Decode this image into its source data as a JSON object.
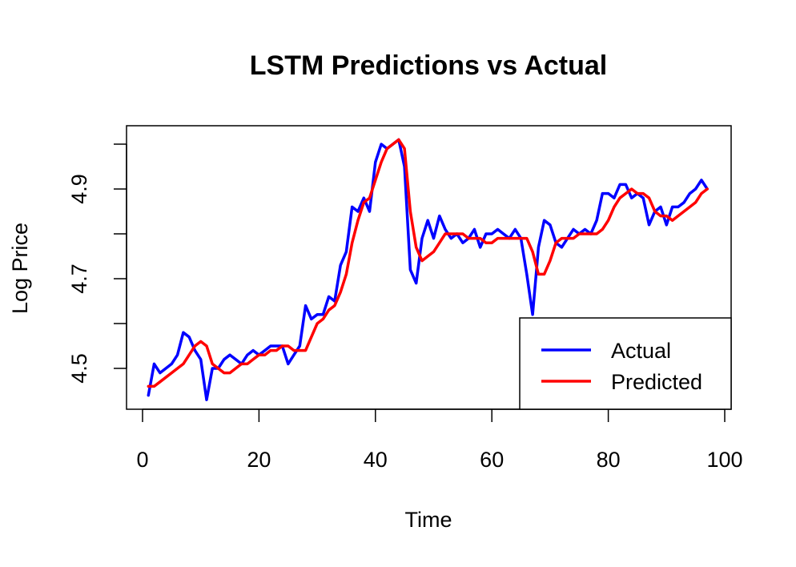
{
  "chart_data": {
    "type": "line",
    "title": "LSTM Predictions vs Actual",
    "xlabel": "Time",
    "ylabel": "Log Price",
    "xlim": [
      0,
      100
    ],
    "ylim": [
      4.42,
      5.02
    ],
    "x_ticks": [
      0,
      20,
      40,
      60,
      80,
      100
    ],
    "y_ticks": [
      4.5,
      4.6,
      4.7,
      4.8,
      4.9,
      5.0
    ],
    "y_tick_labels": [
      "4.5",
      "",
      "4.7",
      "",
      "4.9",
      ""
    ],
    "grid": false,
    "legend_position": "bottom-right",
    "series": [
      {
        "name": "Actual",
        "color": "#0000FF",
        "x": [
          1,
          2,
          3,
          4,
          5,
          6,
          7,
          8,
          9,
          10,
          11,
          12,
          13,
          14,
          15,
          16,
          17,
          18,
          19,
          20,
          21,
          22,
          23,
          24,
          25,
          26,
          27,
          28,
          29,
          30,
          31,
          32,
          33,
          34,
          35,
          36,
          37,
          38,
          39,
          40,
          41,
          42,
          43,
          44,
          45,
          46,
          47,
          48,
          49,
          50,
          51,
          52,
          53,
          54,
          55,
          56,
          57,
          58,
          59,
          60,
          61,
          62,
          63,
          64,
          65,
          66,
          67,
          68,
          69,
          70,
          71,
          72,
          73,
          74,
          75,
          76,
          77,
          78,
          79,
          80,
          81,
          82,
          83,
          84,
          85,
          86,
          87,
          88,
          89,
          90,
          91,
          92,
          93,
          94,
          95,
          96,
          97
        ],
        "values": [
          4.44,
          4.51,
          4.49,
          4.5,
          4.51,
          4.53,
          4.58,
          4.57,
          4.54,
          4.52,
          4.43,
          4.5,
          4.5,
          4.52,
          4.53,
          4.52,
          4.51,
          4.53,
          4.54,
          4.53,
          4.54,
          4.55,
          4.55,
          4.55,
          4.51,
          4.53,
          4.55,
          4.64,
          4.61,
          4.62,
          4.62,
          4.66,
          4.65,
          4.73,
          4.76,
          4.86,
          4.85,
          4.88,
          4.85,
          4.96,
          5.0,
          4.99,
          5.0,
          5.01,
          4.95,
          4.72,
          4.69,
          4.79,
          4.83,
          4.79,
          4.84,
          4.81,
          4.79,
          4.8,
          4.78,
          4.79,
          4.81,
          4.77,
          4.8,
          4.8,
          4.81,
          4.8,
          4.79,
          4.81,
          4.79,
          4.71,
          4.62,
          4.77,
          4.83,
          4.82,
          4.78,
          4.77,
          4.79,
          4.81,
          4.8,
          4.81,
          4.8,
          4.83,
          4.89,
          4.89,
          4.88,
          4.91,
          4.91,
          4.88,
          4.89,
          4.88,
          4.82,
          4.85,
          4.86,
          4.82,
          4.86,
          4.86,
          4.87,
          4.89,
          4.9,
          4.92,
          4.9
        ]
      },
      {
        "name": "Predicted",
        "color": "#FF0000",
        "x": [
          1,
          2,
          3,
          4,
          5,
          6,
          7,
          8,
          9,
          10,
          11,
          12,
          13,
          14,
          15,
          16,
          17,
          18,
          19,
          20,
          21,
          22,
          23,
          24,
          25,
          26,
          27,
          28,
          29,
          30,
          31,
          32,
          33,
          34,
          35,
          36,
          37,
          38,
          39,
          40,
          41,
          42,
          43,
          44,
          45,
          46,
          47,
          48,
          49,
          50,
          51,
          52,
          53,
          54,
          55,
          56,
          57,
          58,
          59,
          60,
          61,
          62,
          63,
          64,
          65,
          66,
          67,
          68,
          69,
          70,
          71,
          72,
          73,
          74,
          75,
          76,
          77,
          78,
          79,
          80,
          81,
          82,
          83,
          84,
          85,
          86,
          87,
          88,
          89,
          90,
          91,
          92,
          93,
          94,
          95,
          96,
          97
        ],
        "values": [
          4.46,
          4.46,
          4.47,
          4.48,
          4.49,
          4.5,
          4.51,
          4.53,
          4.55,
          4.56,
          4.55,
          4.51,
          4.5,
          4.49,
          4.49,
          4.5,
          4.51,
          4.51,
          4.52,
          4.53,
          4.53,
          4.54,
          4.54,
          4.55,
          4.55,
          4.54,
          4.54,
          4.54,
          4.57,
          4.6,
          4.61,
          4.63,
          4.64,
          4.67,
          4.71,
          4.78,
          4.83,
          4.87,
          4.88,
          4.92,
          4.96,
          4.99,
          5.0,
          5.01,
          4.99,
          4.85,
          4.77,
          4.74,
          4.75,
          4.76,
          4.78,
          4.8,
          4.8,
          4.8,
          4.8,
          4.79,
          4.79,
          4.79,
          4.78,
          4.78,
          4.79,
          4.79,
          4.79,
          4.79,
          4.79,
          4.79,
          4.76,
          4.71,
          4.71,
          4.74,
          4.78,
          4.79,
          4.79,
          4.79,
          4.8,
          4.8,
          4.8,
          4.8,
          4.81,
          4.83,
          4.86,
          4.88,
          4.89,
          4.9,
          4.89,
          4.89,
          4.88,
          4.85,
          4.84,
          4.84,
          4.83,
          4.84,
          4.85,
          4.86,
          4.87,
          4.89,
          4.9
        ]
      }
    ]
  }
}
